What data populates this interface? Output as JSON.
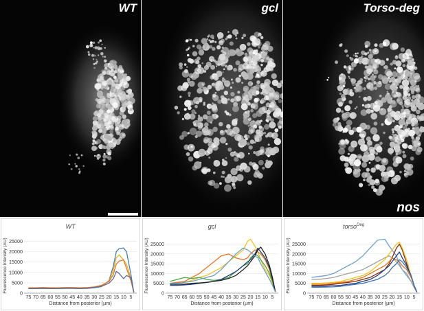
{
  "panels": [
    {
      "label": "WT"
    },
    {
      "label": "gcl"
    },
    {
      "label": "Torso-deg",
      "stain_label": "nos"
    }
  ],
  "chart_data": [
    {
      "type": "line",
      "title": "WT",
      "xlabel": "Distance from posterior (µm)",
      "ylabel": "Fluorescence Intensity (AU)",
      "x": [
        75,
        70,
        65,
        60,
        55,
        50,
        45,
        40,
        35,
        30,
        25,
        20,
        17,
        15,
        13,
        10,
        8,
        5,
        3
      ],
      "xticks": [
        75,
        70,
        65,
        60,
        55,
        50,
        45,
        40,
        35,
        30,
        25,
        20,
        15,
        10,
        5
      ],
      "yticks": [
        0,
        5000,
        10000,
        15000,
        20000,
        25000
      ],
      "xlim": [
        78,
        1
      ],
      "ylim": [
        0,
        26500
      ],
      "series": [
        {
          "color": "#3d7cc4",
          "values": [
            2200,
            2200,
            2300,
            2200,
            2200,
            2300,
            2300,
            2200,
            2300,
            2600,
            3200,
            6000,
            13000,
            20000,
            21500,
            21800,
            20000,
            9000,
            500
          ]
        },
        {
          "color": "#e6b31c",
          "values": [
            2400,
            2400,
            2500,
            2400,
            2400,
            2500,
            2500,
            2400,
            2500,
            2800,
            3500,
            5800,
            11000,
            17000,
            18500,
            16000,
            14000,
            7000,
            400
          ]
        },
        {
          "color": "#e8731c",
          "values": [
            2600,
            2600,
            2700,
            2600,
            2600,
            2700,
            2700,
            2600,
            2700,
            3000,
            3800,
            5600,
            9000,
            14000,
            15500,
            16000,
            12000,
            6000,
            400
          ]
        },
        {
          "color": "#5a6b9e",
          "values": [
            2300,
            2300,
            2400,
            2300,
            2300,
            2400,
            2400,
            2300,
            2400,
            2700,
            3300,
            4800,
            7000,
            10500,
            9500,
            7000,
            8500,
            7500,
            300
          ]
        }
      ]
    },
    {
      "type": "line",
      "title": "gcl",
      "xlabel": "Distance from posterior (µm)",
      "ylabel": "Fluorescence Intensity (AU)",
      "x": [
        75,
        70,
        65,
        60,
        55,
        50,
        45,
        40,
        35,
        30,
        25,
        22,
        20,
        17,
        15,
        13,
        10,
        7,
        5,
        3
      ],
      "xticks": [
        75,
        70,
        65,
        60,
        55,
        50,
        45,
        40,
        35,
        30,
        25,
        20,
        15,
        10,
        5
      ],
      "yticks": [
        0,
        5000,
        10000,
        15000,
        20000,
        25000
      ],
      "xlim": [
        78,
        1
      ],
      "ylim": [
        0,
        28000
      ],
      "series": [
        {
          "color": "#f0c419",
          "values": [
            5000,
            5200,
            5500,
            6500,
            8000,
            9000,
            11000,
            13000,
            16000,
            19000,
            22000,
            26500,
            27500,
            24000,
            21000,
            17000,
            12000,
            9000,
            5000,
            800
          ]
        },
        {
          "color": "#e8731c",
          "values": [
            5000,
            5500,
            6000,
            8000,
            10000,
            13000,
            16000,
            19000,
            20000,
            18000,
            17000,
            18000,
            20000,
            22000,
            21000,
            20000,
            17000,
            12000,
            6000,
            700
          ]
        },
        {
          "color": "#4aa845",
          "values": [
            6000,
            7000,
            8000,
            7500,
            8000,
            7000,
            6500,
            7000,
            8000,
            11000,
            14000,
            15000,
            18000,
            20000,
            19000,
            17000,
            14000,
            10000,
            6000,
            600
          ]
        },
        {
          "color": "#1f3f7f",
          "values": [
            4000,
            4000,
            4200,
            4500,
            5000,
            5500,
            6000,
            7000,
            9000,
            11000,
            14000,
            16000,
            17000,
            20000,
            23000,
            21000,
            18000,
            13000,
            7000,
            600
          ]
        },
        {
          "color": "#222222",
          "values": [
            4500,
            4500,
            4600,
            5000,
            5200,
            5500,
            6000,
            6500,
            7500,
            9000,
            12000,
            14000,
            16000,
            19000,
            22000,
            23500,
            20000,
            14000,
            8000,
            700
          ]
        },
        {
          "color": "#6aa0d0",
          "values": [
            5000,
            5000,
            5500,
            6000,
            7000,
            8000,
            9000,
            12000,
            16000,
            20000,
            23000,
            22000,
            21000,
            19000,
            18000,
            15000,
            11000,
            7000,
            4000,
            600
          ]
        }
      ]
    },
    {
      "type": "line",
      "title": "torso",
      "title_sup": "Deg",
      "xlabel": "Distance from posterior (µm)",
      "ylabel": "Fluorescence Intensity (AU)",
      "x": [
        75,
        70,
        65,
        60,
        55,
        50,
        45,
        40,
        35,
        30,
        25,
        22,
        20,
        17,
        15,
        13,
        10,
        7,
        5,
        3
      ],
      "xticks": [
        75,
        70,
        65,
        60,
        55,
        50,
        45,
        40,
        35,
        30,
        25,
        20,
        15,
        10,
        5
      ],
      "yticks": [
        0,
        5000,
        10000,
        15000,
        20000,
        25000
      ],
      "xlim": [
        78,
        1
      ],
      "ylim": [
        0,
        28000
      ],
      "series": [
        {
          "color": "#6aa0d0",
          "values": [
            8000,
            8500,
            9000,
            10000,
            12000,
            14000,
            16000,
            19000,
            23000,
            27000,
            27500,
            24000,
            22000,
            19000,
            15000,
            12000,
            9000,
            6000,
            3000,
            500
          ]
        },
        {
          "color": "#a0a0a0",
          "values": [
            7000,
            7000,
            7500,
            8000,
            9000,
            10000,
            11000,
            12000,
            14000,
            16000,
            18000,
            19000,
            18000,
            16000,
            14000,
            12000,
            10000,
            6000,
            3000,
            500
          ]
        },
        {
          "color": "#8b2a0c",
          "values": [
            4000,
            4000,
            4200,
            4500,
            5000,
            5500,
            6000,
            7000,
            8000,
            10000,
            12000,
            15000,
            18000,
            23000,
            25000,
            22000,
            15000,
            9000,
            4000,
            500
          ]
        },
        {
          "color": "#f0c419",
          "values": [
            5000,
            5000,
            5200,
            5500,
            6000,
            7000,
            8000,
            9000,
            11000,
            14000,
            17000,
            20000,
            22000,
            25000,
            26000,
            23000,
            17000,
            9000,
            4000,
            500
          ]
        },
        {
          "color": "#e8731c",
          "values": [
            4500,
            4500,
            4600,
            5000,
            5500,
            6000,
            7000,
            8000,
            10000,
            12000,
            14000,
            16000,
            18000,
            17000,
            16000,
            14000,
            12000,
            8000,
            4000,
            500
          ]
        },
        {
          "color": "#1f3f7f",
          "values": [
            3500,
            3500,
            3600,
            3800,
            4000,
            4500,
            5000,
            6000,
            7000,
            9000,
            12000,
            14000,
            16000,
            19000,
            21000,
            18000,
            14000,
            9000,
            4000,
            500
          ]
        },
        {
          "color": "#3a70b8",
          "values": [
            3000,
            3000,
            3100,
            3200,
            3500,
            4000,
            4500,
            5000,
            6000,
            7000,
            9000,
            11000,
            13000,
            15000,
            17000,
            16000,
            13000,
            9000,
            4000,
            500
          ]
        }
      ]
    }
  ]
}
